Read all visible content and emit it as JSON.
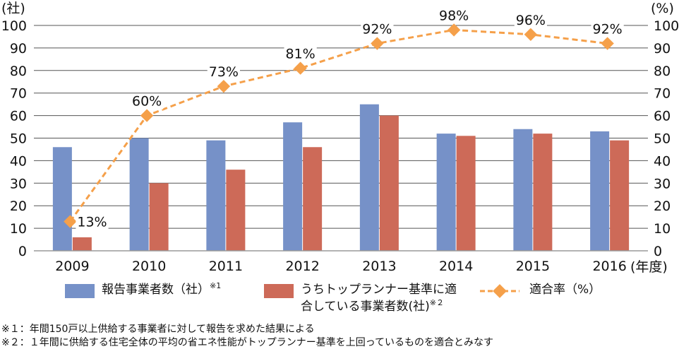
{
  "colors": {
    "bar1": "#7691c8",
    "bar2": "#cd6a58",
    "line": "#f5a04a",
    "grid": "#555555",
    "axis": "#9a9a9a",
    "text": "#111111"
  },
  "chart_data": {
    "type": "bar",
    "categories": [
      "2009",
      "2010",
      "2011",
      "2012",
      "2013",
      "2014",
      "2015",
      "2016"
    ],
    "series": [
      {
        "name": "報告事業者数(社)",
        "axis": "left",
        "values": [
          46,
          50,
          49,
          57,
          65,
          52,
          54,
          53
        ]
      },
      {
        "name": "うちトップランナー基準に適合している事業者数(社)",
        "axis": "left",
        "values": [
          6,
          30,
          36,
          46,
          60,
          51,
          52,
          49
        ]
      },
      {
        "name": "適合率(%)",
        "type": "line",
        "axis": "right",
        "values": [
          13,
          60,
          73,
          81,
          92,
          98,
          96,
          92
        ],
        "labels": [
          "13%",
          "60%",
          "73%",
          "81%",
          "92%",
          "98%",
          "96%",
          "92%"
        ]
      }
    ],
    "y_left": {
      "unit": "(社)",
      "ylim": [
        0,
        100
      ],
      "ticks": [
        "0",
        "10",
        "20",
        "30",
        "40",
        "50",
        "60",
        "70",
        "80",
        "90",
        "100"
      ]
    },
    "y_right": {
      "unit": "(%)",
      "ylim": [
        0,
        100
      ],
      "ticks": [
        "0",
        "10",
        "20",
        "30",
        "40",
        "50",
        "60",
        "70",
        "80",
        "90",
        "100"
      ]
    },
    "x_unit": "(年度)",
    "grid": true,
    "legend_position": "bottom"
  },
  "legend": {
    "bar1": {
      "label": "報告事業者数（社）",
      "sup": "※1"
    },
    "bar2": {
      "label_line1": "うちトップランナー基準に適",
      "label_line2": "合している事業者数(社)",
      "sup": "※２"
    },
    "line": {
      "label": "適合率（%）"
    }
  },
  "notes": [
    "※１：年間150戸以上供給する事業者に対して報告を求めた結果による",
    "※２：１年間に供給する住宅全体の平均の省エネ性能がトップランナー基準を上回っているものを適合とみなす"
  ]
}
